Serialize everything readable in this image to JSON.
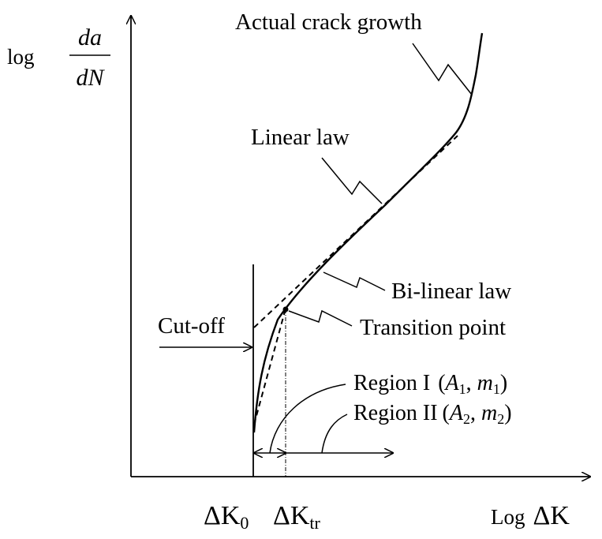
{
  "y_axis": {
    "prefix": "log",
    "numerator": "da",
    "denominator": "dN"
  },
  "x_axis": {
    "prefix": "Log",
    "symbol": "ΔK"
  },
  "labels": {
    "actual": "Actual crack growth",
    "linear": "Linear law",
    "bilinear": "Bi-linear law",
    "cutoff": "Cut-off",
    "transition": "Transition point",
    "region1": {
      "text": "Region I",
      "A": "A",
      "m": "m",
      "sub": "1"
    },
    "region2": {
      "text": "Region II",
      "A": "A",
      "m": "m",
      "sub": "2"
    }
  },
  "ticks": {
    "k0": {
      "main": "ΔK",
      "sub": "0"
    },
    "ktr": {
      "main": "ΔK",
      "sub": "tr"
    }
  }
}
